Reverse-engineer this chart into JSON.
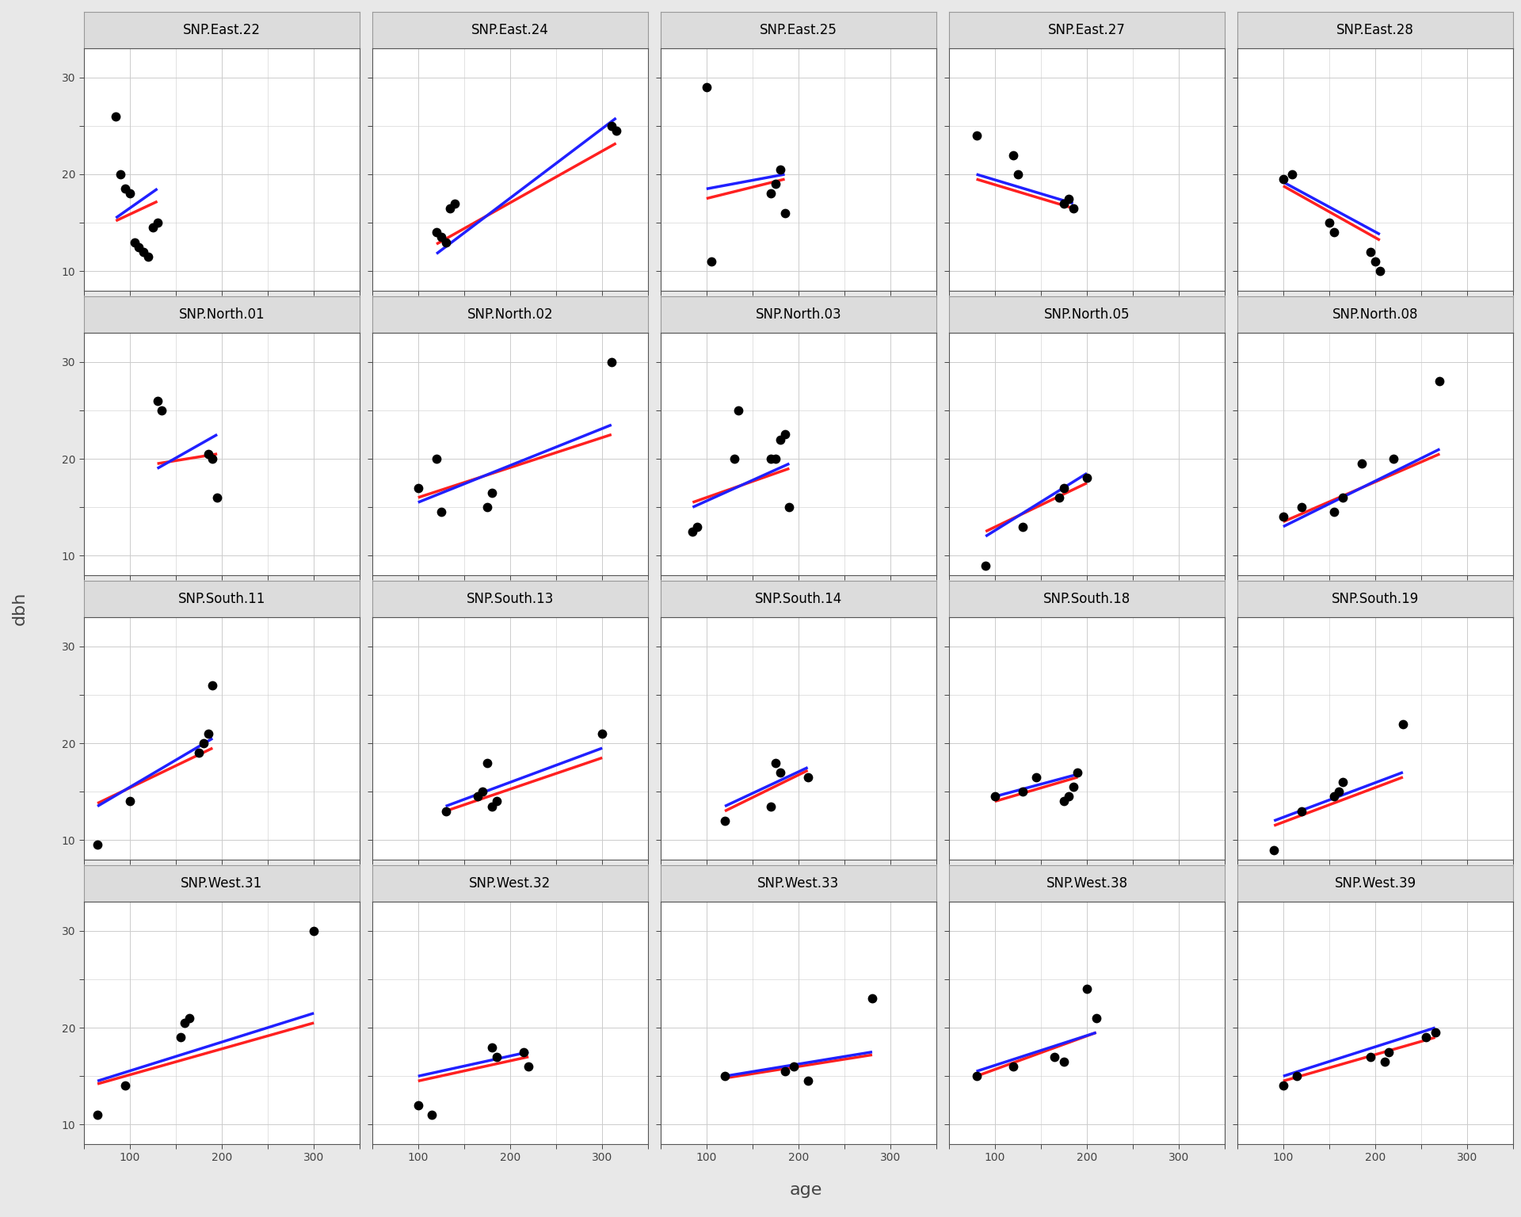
{
  "sites": [
    "SNP.East.22",
    "SNP.East.24",
    "SNP.East.25",
    "SNP.East.27",
    "SNP.East.28",
    "SNP.North.01",
    "SNP.North.02",
    "SNP.North.03",
    "SNP.North.05",
    "SNP.North.08",
    "SNP.South.11",
    "SNP.South.13",
    "SNP.South.14",
    "SNP.South.18",
    "SNP.South.19",
    "SNP.West.31",
    "SNP.West.32",
    "SNP.West.33",
    "SNP.West.38",
    "SNP.West.39"
  ],
  "scatter_data": {
    "SNP.East.22": {
      "x": [
        85,
        90,
        95,
        100,
        105,
        110,
        115,
        120,
        125,
        130
      ],
      "y": [
        26,
        20,
        18.5,
        18,
        13,
        12.5,
        12,
        11.5,
        14.5,
        15
      ]
    },
    "SNP.East.24": {
      "x": [
        120,
        125,
        130,
        135,
        140,
        310,
        315
      ],
      "y": [
        14,
        13.5,
        13,
        16.5,
        17,
        25,
        24.5
      ]
    },
    "SNP.East.25": {
      "x": [
        100,
        105,
        170,
        175,
        180,
        185
      ],
      "y": [
        29,
        11,
        18,
        19,
        20.5,
        16
      ]
    },
    "SNP.East.27": {
      "x": [
        80,
        120,
        125,
        175,
        180,
        185
      ],
      "y": [
        24,
        22,
        20,
        17,
        17.5,
        16.5
      ]
    },
    "SNP.East.28": {
      "x": [
        100,
        110,
        150,
        155,
        195,
        200,
        205
      ],
      "y": [
        19.5,
        20,
        15,
        14,
        12,
        11,
        10
      ]
    },
    "SNP.North.01": {
      "x": [
        130,
        135,
        185,
        190,
        195
      ],
      "y": [
        26,
        25,
        20.5,
        20,
        16
      ]
    },
    "SNP.North.02": {
      "x": [
        100,
        120,
        125,
        175,
        180,
        310
      ],
      "y": [
        17,
        20,
        14.5,
        15,
        16.5,
        30
      ]
    },
    "SNP.North.03": {
      "x": [
        85,
        90,
        130,
        135,
        170,
        175,
        180,
        185,
        190
      ],
      "y": [
        12.5,
        13,
        20,
        25,
        20,
        20,
        22,
        22.5,
        15
      ]
    },
    "SNP.North.05": {
      "x": [
        90,
        130,
        170,
        175,
        200
      ],
      "y": [
        9,
        13,
        16,
        17,
        18
      ]
    },
    "SNP.North.08": {
      "x": [
        100,
        120,
        155,
        165,
        185,
        220,
        270
      ],
      "y": [
        14,
        15,
        14.5,
        16,
        19.5,
        20,
        28
      ]
    },
    "SNP.South.11": {
      "x": [
        65,
        100,
        175,
        180,
        185,
        190
      ],
      "y": [
        9.5,
        14,
        19,
        20,
        21,
        26
      ]
    },
    "SNP.South.13": {
      "x": [
        130,
        165,
        170,
        175,
        180,
        185,
        300
      ],
      "y": [
        13,
        14.5,
        15,
        18,
        13.5,
        14,
        21
      ]
    },
    "SNP.South.14": {
      "x": [
        120,
        170,
        175,
        180,
        210
      ],
      "y": [
        12,
        13.5,
        18,
        17,
        16.5
      ]
    },
    "SNP.South.18": {
      "x": [
        100,
        130,
        145,
        175,
        180,
        185,
        190
      ],
      "y": [
        14.5,
        15,
        16.5,
        14,
        14.5,
        15.5,
        17
      ]
    },
    "SNP.South.19": {
      "x": [
        90,
        120,
        155,
        160,
        165,
        230
      ],
      "y": [
        9,
        13,
        14.5,
        15,
        16,
        22
      ]
    },
    "SNP.West.31": {
      "x": [
        65,
        95,
        155,
        160,
        165,
        300
      ],
      "y": [
        11,
        14,
        19,
        20.5,
        21,
        30
      ]
    },
    "SNP.West.32": {
      "x": [
        100,
        115,
        180,
        185,
        215,
        220
      ],
      "y": [
        12,
        11,
        18,
        17,
        17.5,
        16
      ]
    },
    "SNP.West.33": {
      "x": [
        120,
        185,
        195,
        210,
        280
      ],
      "y": [
        15,
        15.5,
        16,
        14.5,
        23
      ]
    },
    "SNP.West.38": {
      "x": [
        80,
        120,
        165,
        175,
        200,
        210
      ],
      "y": [
        15,
        16,
        17,
        16.5,
        24,
        21
      ]
    },
    "SNP.West.39": {
      "x": [
        100,
        115,
        195,
        210,
        215,
        255,
        265
      ],
      "y": [
        14,
        15,
        17,
        16.5,
        17.5,
        19,
        19.5
      ]
    }
  },
  "fixed_lines": {
    "SNP.East.22": {
      "x0": 85,
      "x1": 130,
      "y0": 15.2,
      "y1": 17.2
    },
    "SNP.East.24": {
      "x0": 120,
      "x1": 315,
      "y0": 12.8,
      "y1": 23.2
    },
    "SNP.East.25": {
      "x0": 100,
      "x1": 185,
      "y0": 17.5,
      "y1": 19.5
    },
    "SNP.East.27": {
      "x0": 80,
      "x1": 185,
      "y0": 19.5,
      "y1": 16.5
    },
    "SNP.East.28": {
      "x0": 100,
      "x1": 205,
      "y0": 18.8,
      "y1": 13.2
    },
    "SNP.North.01": {
      "x0": 130,
      "x1": 195,
      "y0": 19.5,
      "y1": 20.5
    },
    "SNP.North.02": {
      "x0": 100,
      "x1": 310,
      "y0": 16.0,
      "y1": 22.5
    },
    "SNP.North.03": {
      "x0": 85,
      "x1": 190,
      "y0": 15.5,
      "y1": 19.0
    },
    "SNP.North.05": {
      "x0": 90,
      "x1": 200,
      "y0": 12.5,
      "y1": 17.5
    },
    "SNP.North.08": {
      "x0": 100,
      "x1": 270,
      "y0": 13.5,
      "y1": 20.5
    },
    "SNP.South.11": {
      "x0": 65,
      "x1": 190,
      "y0": 13.8,
      "y1": 19.5
    },
    "SNP.South.13": {
      "x0": 130,
      "x1": 300,
      "y0": 13.0,
      "y1": 18.5
    },
    "SNP.South.14": {
      "x0": 120,
      "x1": 210,
      "y0": 13.0,
      "y1": 17.2
    },
    "SNP.South.18": {
      "x0": 100,
      "x1": 190,
      "y0": 14.0,
      "y1": 16.5
    },
    "SNP.South.19": {
      "x0": 90,
      "x1": 230,
      "y0": 11.5,
      "y1": 16.5
    },
    "SNP.West.31": {
      "x0": 65,
      "x1": 300,
      "y0": 14.2,
      "y1": 20.5
    },
    "SNP.West.32": {
      "x0": 100,
      "x1": 220,
      "y0": 14.5,
      "y1": 17.0
    },
    "SNP.West.33": {
      "x0": 120,
      "x1": 280,
      "y0": 14.8,
      "y1": 17.2
    },
    "SNP.West.38": {
      "x0": 80,
      "x1": 210,
      "y0": 15.0,
      "y1": 19.5
    },
    "SNP.West.39": {
      "x0": 100,
      "x1": 265,
      "y0": 14.5,
      "y1": 19.0
    }
  },
  "mixed_lines": {
    "SNP.East.22": {
      "x0": 85,
      "x1": 130,
      "y0": 15.5,
      "y1": 18.5
    },
    "SNP.East.24": {
      "x0": 120,
      "x1": 315,
      "y0": 11.8,
      "y1": 25.8
    },
    "SNP.East.25": {
      "x0": 100,
      "x1": 185,
      "y0": 18.5,
      "y1": 20.0
    },
    "SNP.East.27": {
      "x0": 80,
      "x1": 185,
      "y0": 20.0,
      "y1": 17.0
    },
    "SNP.East.28": {
      "x0": 100,
      "x1": 205,
      "y0": 19.2,
      "y1": 13.8
    },
    "SNP.North.01": {
      "x0": 130,
      "x1": 195,
      "y0": 19.0,
      "y1": 22.5
    },
    "SNP.North.02": {
      "x0": 100,
      "x1": 310,
      "y0": 15.5,
      "y1": 23.5
    },
    "SNP.North.03": {
      "x0": 85,
      "x1": 190,
      "y0": 15.0,
      "y1": 19.5
    },
    "SNP.North.05": {
      "x0": 90,
      "x1": 200,
      "y0": 12.0,
      "y1": 18.5
    },
    "SNP.North.08": {
      "x0": 100,
      "x1": 270,
      "y0": 13.0,
      "y1": 21.0
    },
    "SNP.South.11": {
      "x0": 65,
      "x1": 190,
      "y0": 13.5,
      "y1": 20.5
    },
    "SNP.South.13": {
      "x0": 130,
      "x1": 300,
      "y0": 13.5,
      "y1": 19.5
    },
    "SNP.South.14": {
      "x0": 120,
      "x1": 210,
      "y0": 13.5,
      "y1": 17.5
    },
    "SNP.South.18": {
      "x0": 100,
      "x1": 190,
      "y0": 14.5,
      "y1": 16.8
    },
    "SNP.South.19": {
      "x0": 90,
      "x1": 230,
      "y0": 12.0,
      "y1": 17.0
    },
    "SNP.West.31": {
      "x0": 65,
      "x1": 300,
      "y0": 14.5,
      "y1": 21.5
    },
    "SNP.West.32": {
      "x0": 100,
      "x1": 220,
      "y0": 15.0,
      "y1": 17.5
    },
    "SNP.West.33": {
      "x0": 120,
      "x1": 280,
      "y0": 15.0,
      "y1": 17.5
    },
    "SNP.West.38": {
      "x0": 80,
      "x1": 210,
      "y0": 15.5,
      "y1": 19.5
    },
    "SNP.West.39": {
      "x0": 100,
      "x1": 265,
      "y0": 15.0,
      "y1": 20.0
    }
  },
  "nrows": 4,
  "ncols": 5,
  "xlim": [
    50,
    350
  ],
  "ylim": [
    8,
    33
  ],
  "xticks": [
    100,
    200,
    300
  ],
  "yticks": [
    10,
    20,
    30
  ],
  "xlabel": "age",
  "ylabel": "dbh",
  "fixed_color": "#FF2020",
  "mixed_color": "#2020FF",
  "line_width": 2.5,
  "scatter_size": 18,
  "scatter_color": "black",
  "panel_bg": "#FFFFFF",
  "fig_bg": "#FFFFFF",
  "strip_bg": "#DCDCDC",
  "grid_color": "#CCCCCC",
  "outer_bg": "#E8E8E8",
  "border_color": "#555555",
  "strip_border_color": "#999999",
  "title_fontsize": 12,
  "axis_label_fontsize": 14,
  "tick_fontsize": 10,
  "tick_color": "#444444"
}
